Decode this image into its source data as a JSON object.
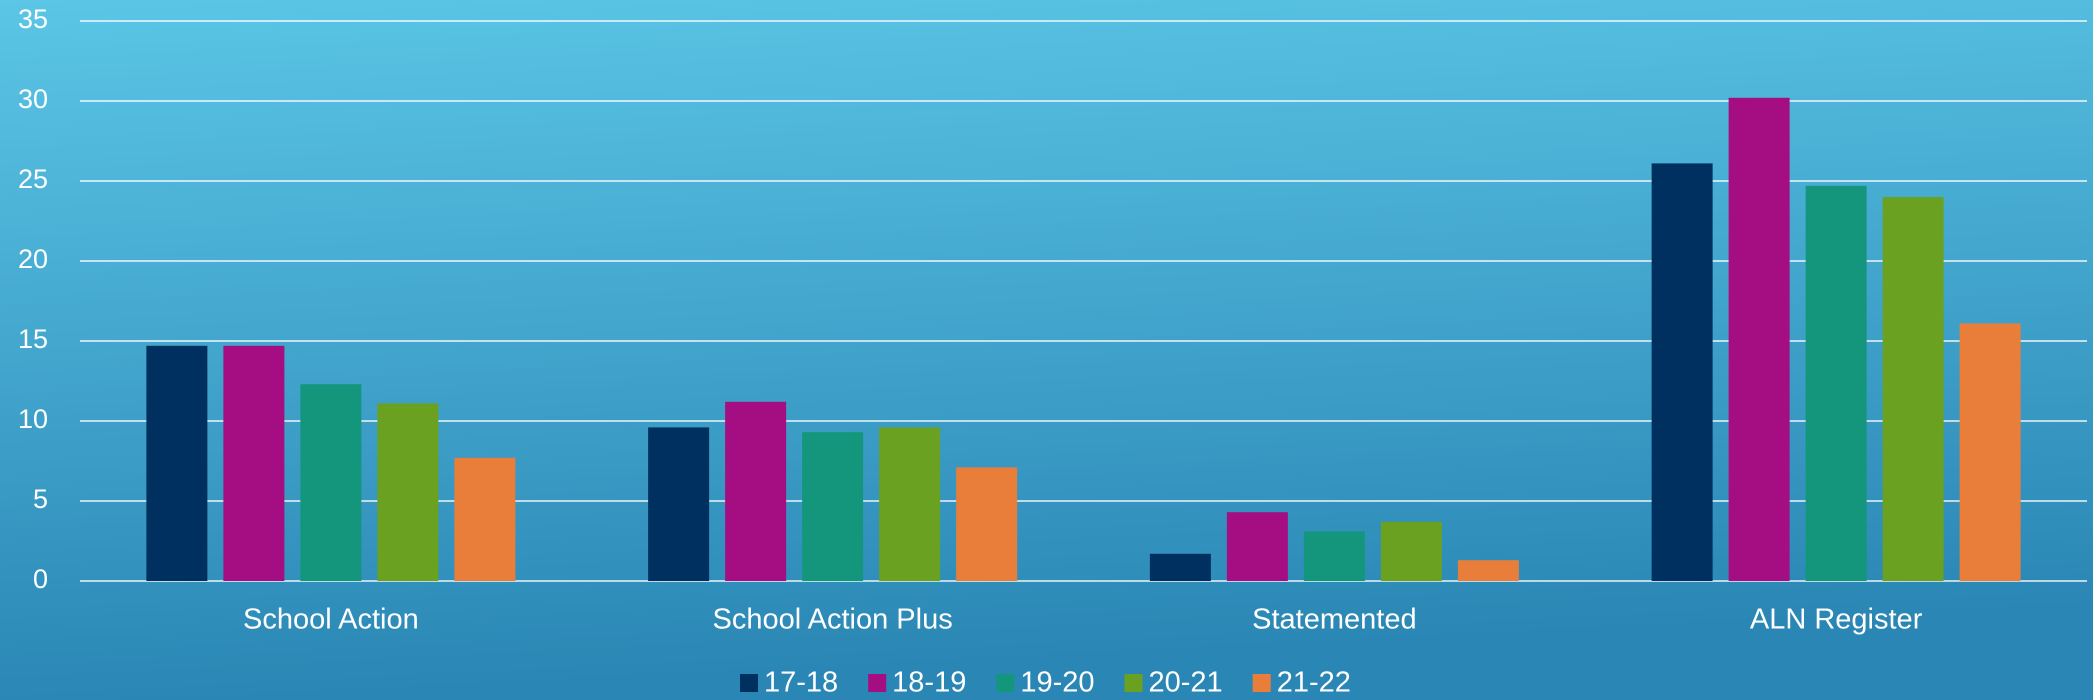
{
  "chart_data": {
    "type": "bar",
    "categories": [
      "School Action",
      "School Action Plus",
      "Statemented",
      "ALN Register"
    ],
    "series": [
      {
        "name": "17-18",
        "color": "#003060",
        "values": [
          14.7,
          9.6,
          1.7,
          26.1
        ]
      },
      {
        "name": "18-19",
        "color": "#a50e82",
        "values": [
          14.7,
          11.2,
          4.3,
          30.2
        ]
      },
      {
        "name": "19-20",
        "color": "#14967c",
        "values": [
          12.3,
          9.3,
          3.1,
          24.7
        ]
      },
      {
        "name": "20-21",
        "color": "#6aa121",
        "values": [
          11.1,
          9.6,
          3.7,
          24.0
        ]
      },
      {
        "name": "21-22",
        "color": "#e97e3a",
        "values": [
          7.7,
          7.1,
          1.3,
          16.1
        ]
      }
    ],
    "ylim": [
      0,
      35
    ],
    "yticks": [
      0,
      5,
      10,
      15,
      20,
      25,
      30,
      35
    ],
    "grid": true,
    "legend": "bottom"
  }
}
